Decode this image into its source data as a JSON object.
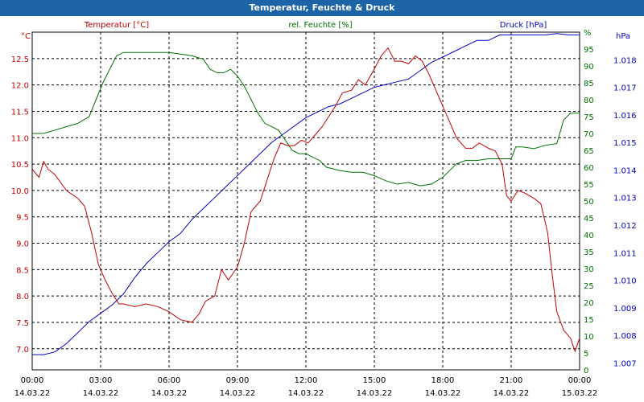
{
  "title": "Temperatur, Feuchte & Druck",
  "colors": {
    "temperature": "#c00000",
    "humidity": "#007000",
    "pressure": "#0000c0",
    "titlebar": "#1c64a6",
    "grid": "#000000"
  },
  "chart_data": {
    "type": "line",
    "title": "Temperatur, Feuchte & Druck",
    "legend": [
      "Temperatur [°C]",
      "rel. Feuchte [%]",
      "Druck [hPa]"
    ],
    "x_ticks": [
      {
        "time": "00:00",
        "date": "14.03.22"
      },
      {
        "time": "03:00",
        "date": "14.03.22"
      },
      {
        "time": "06:00",
        "date": "14.03.22"
      },
      {
        "time": "09:00",
        "date": "14.03.22"
      },
      {
        "time": "12:00",
        "date": "14.03.22"
      },
      {
        "time": "15:00",
        "date": "14.03.22"
      },
      {
        "time": "18:00",
        "date": "14.03.22"
      },
      {
        "time": "21:00",
        "date": "14.03.22"
      },
      {
        "time": "00:00",
        "date": "15.03.22"
      }
    ],
    "xlim": [
      0,
      24
    ],
    "axes": {
      "temperature": {
        "unit": "°C",
        "ylim": [
          6.6,
          13.0
        ],
        "ticks": [
          "7.0",
          "7.5",
          "8.0",
          "8.5",
          "9.0",
          "9.5",
          "10.0",
          "10.5",
          "11.0",
          "11.5",
          "12.0",
          "12.5"
        ]
      },
      "humidity": {
        "unit": "%",
        "ylim": [
          0,
          100
        ],
        "ticks": [
          "0",
          "5",
          "10",
          "15",
          "20",
          "25",
          "30",
          "35",
          "40",
          "45",
          "50",
          "55",
          "60",
          "65",
          "70",
          "75",
          "80",
          "85",
          "90",
          "95",
          "%"
        ]
      },
      "pressure": {
        "unit": "hPa",
        "ylim": [
          1006.75,
          1019.0
        ],
        "ticks": [
          "1.007",
          "1.008",
          "1.009",
          "1.010",
          "1.011",
          "1.012",
          "1.013",
          "1.014",
          "1.015",
          "1.016",
          "1.017",
          "1.018",
          "hPa"
        ]
      }
    },
    "series": [
      {
        "name": "Temperatur [°C]",
        "axis": "temperature",
        "x": [
          0,
          0.3,
          0.5,
          0.7,
          1.0,
          1.5,
          2.0,
          2.3,
          2.6,
          2.9,
          3.2,
          3.5,
          3.8,
          4.0,
          4.5,
          5.0,
          5.5,
          6.0,
          6.5,
          7.0,
          7.3,
          7.6,
          8.0,
          8.3,
          8.6,
          9.0,
          9.3,
          9.6,
          10.0,
          10.3,
          10.6,
          10.9,
          11.2,
          11.5,
          11.8,
          12.1,
          12.4,
          12.7,
          13.0,
          13.3,
          13.6,
          14.0,
          14.3,
          14.6,
          15.0,
          15.3,
          15.6,
          15.9,
          16.2,
          16.5,
          16.8,
          17.1,
          17.4,
          17.7,
          18.0,
          18.3,
          18.6,
          19.0,
          19.3,
          19.6,
          20.0,
          20.3,
          20.6,
          20.8,
          21.0,
          21.3,
          21.6,
          22.0,
          22.3,
          22.6,
          22.8,
          23.0,
          23.3,
          23.6,
          23.8,
          24.0
        ],
        "values": [
          10.4,
          10.25,
          10.55,
          10.4,
          10.3,
          10.0,
          9.85,
          9.7,
          9.2,
          8.6,
          8.3,
          8.05,
          7.85,
          7.85,
          7.8,
          7.85,
          7.8,
          7.7,
          7.55,
          7.5,
          7.65,
          7.9,
          8.0,
          8.5,
          8.3,
          8.55,
          9.0,
          9.6,
          9.8,
          10.2,
          10.6,
          10.9,
          10.85,
          10.85,
          10.95,
          10.9,
          11.05,
          11.2,
          11.4,
          11.6,
          11.85,
          11.9,
          12.1,
          12.0,
          12.3,
          12.55,
          12.7,
          12.45,
          12.45,
          12.4,
          12.55,
          12.45,
          12.2,
          11.9,
          11.6,
          11.3,
          11.0,
          10.8,
          10.8,
          10.9,
          10.8,
          10.75,
          10.5,
          9.9,
          9.8,
          10.0,
          9.95,
          9.85,
          9.75,
          9.2,
          8.4,
          7.7,
          7.35,
          7.2,
          6.95,
          7.2
        ]
      },
      {
        "name": "rel. Feuchte [%]",
        "axis": "humidity",
        "x": [
          0,
          0.5,
          1.0,
          1.5,
          2.0,
          2.5,
          2.8,
          3.1,
          3.4,
          3.7,
          4.0,
          4.5,
          5.0,
          5.5,
          6.0,
          6.5,
          7.0,
          7.5,
          7.8,
          8.1,
          8.4,
          8.7,
          9.0,
          9.3,
          9.6,
          9.9,
          10.2,
          10.5,
          10.8,
          11.1,
          11.4,
          11.7,
          12.0,
          12.3,
          12.6,
          12.9,
          13.2,
          13.5,
          14.0,
          14.5,
          15.0,
          15.5,
          16.0,
          16.5,
          17.0,
          17.5,
          18.0,
          18.3,
          18.6,
          19.0,
          19.5,
          20.0,
          20.5,
          21.0,
          21.2,
          21.5,
          22.0,
          22.5,
          23.0,
          23.3,
          23.6,
          24.0
        ],
        "values": [
          70,
          70,
          71,
          72,
          73,
          75,
          80,
          85,
          89,
          93,
          94,
          94,
          94,
          94,
          94,
          93.5,
          93,
          92,
          89,
          88,
          88,
          89,
          87,
          84,
          80,
          76,
          73,
          72,
          71,
          68,
          65,
          64,
          64,
          63,
          62,
          60,
          59.5,
          59,
          58.5,
          58.5,
          57.5,
          56,
          55,
          55.5,
          54.5,
          55,
          57,
          59,
          61,
          62,
          62,
          62.5,
          62.5,
          62.5,
          66,
          66,
          65.5,
          66.5,
          67,
          74,
          76,
          76
        ]
      },
      {
        "name": "Druck [hPa]",
        "axis": "pressure",
        "x": [
          0,
          0.5,
          1.0,
          1.5,
          2.0,
          2.5,
          3.0,
          3.5,
          4.0,
          4.5,
          5.0,
          5.5,
          6.0,
          6.5,
          7.0,
          7.5,
          8.0,
          8.5,
          9.0,
          9.5,
          10.0,
          10.5,
          11.0,
          11.5,
          12.0,
          12.5,
          13.0,
          13.5,
          14.0,
          14.5,
          15.0,
          15.5,
          16.0,
          16.5,
          17.0,
          17.5,
          18.0,
          18.5,
          19.0,
          19.5,
          20.0,
          20.5,
          21.0,
          21.5,
          22.0,
          22.5,
          23.0,
          23.5,
          24.0
        ],
        "values": [
          1007.3,
          1007.3,
          1007.4,
          1007.7,
          1008.1,
          1008.5,
          1008.8,
          1009.1,
          1009.5,
          1010.1,
          1010.6,
          1011.0,
          1011.4,
          1011.7,
          1012.2,
          1012.6,
          1013.0,
          1013.4,
          1013.8,
          1014.2,
          1014.6,
          1015.0,
          1015.3,
          1015.6,
          1015.9,
          1016.1,
          1016.3,
          1016.4,
          1016.6,
          1016.8,
          1017.0,
          1017.1,
          1017.2,
          1017.3,
          1017.6,
          1017.9,
          1018.1,
          1018.3,
          1018.5,
          1018.7,
          1018.7,
          1018.9,
          1018.9,
          1018.9,
          1018.9,
          1018.9,
          1018.95,
          1018.9,
          1018.9
        ]
      }
    ]
  }
}
